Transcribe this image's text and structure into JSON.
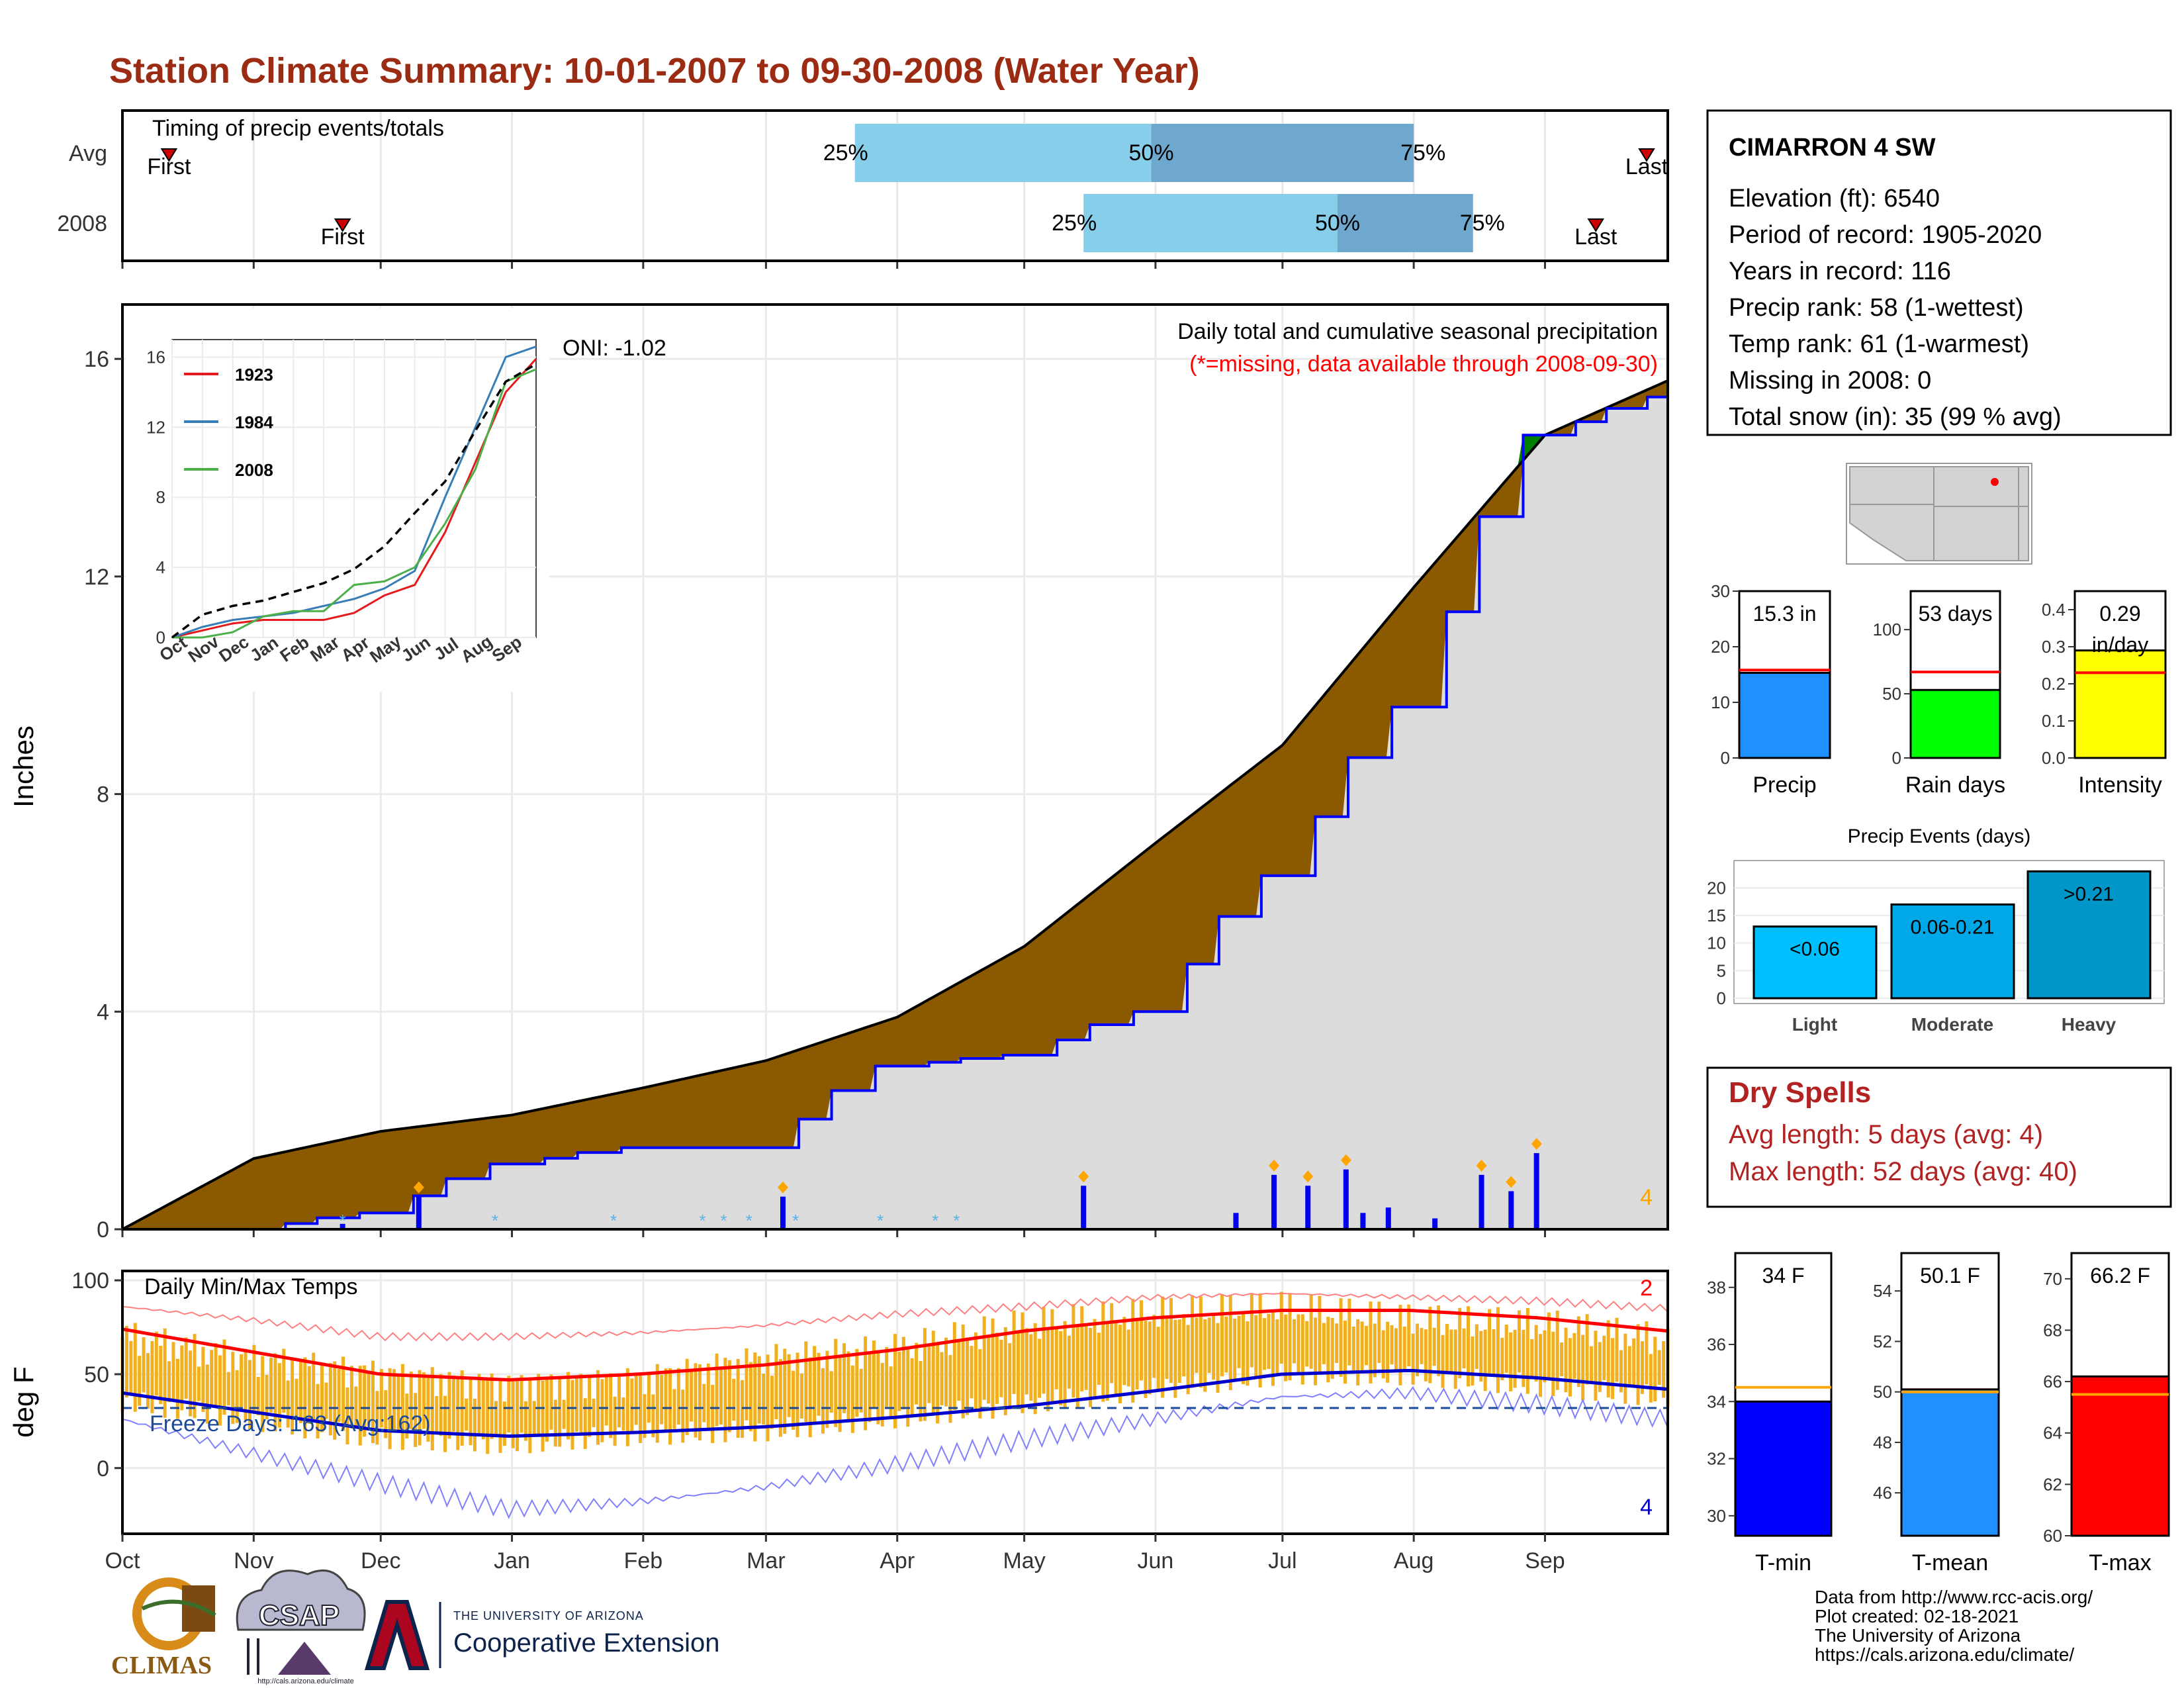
{
  "title": "Station Climate Summary: 10-01-2007 to 09-30-2008 (Water Year)",
  "timing": {
    "label": "Timing of precip events/totals",
    "rows": [
      {
        "name": "Avg",
        "first_label": "First",
        "last_label": "Last"
      },
      {
        "name": "2008",
        "first_label": "First",
        "last_label": "Last"
      }
    ],
    "pct_labels": [
      "25%",
      "50%",
      "75%"
    ]
  },
  "precip": {
    "ylabel": "Inches",
    "oni": "ONI: -1.02",
    "heading": "Daily total and cumulative seasonal precipitation",
    "note": "(*=missing, data available through 2008-09-30)",
    "extreme_count": "4",
    "y_ticks": [
      "0",
      "4",
      "8",
      "12",
      "16"
    ]
  },
  "inset": {
    "y_ticks": [
      "0",
      "4",
      "8",
      "12",
      "16"
    ],
    "x_ticks": [
      "Oct",
      "Nov",
      "Dec",
      "Jan",
      "Feb",
      "Mar",
      "Apr",
      "May",
      "Jun",
      "Jul",
      "Aug",
      "Sep"
    ],
    "legend": [
      "1923",
      "1984",
      "2008"
    ]
  },
  "temps": {
    "ylabel": "deg F",
    "heading": "Daily Min/Max Temps",
    "freeze": "Freeze Days: 163 (Avg:162)",
    "hot_count": "2",
    "cold_count": "4",
    "y_ticks": [
      "0",
      "50",
      "100"
    ]
  },
  "months": [
    "Oct",
    "Nov",
    "Dec",
    "Jan",
    "Feb",
    "Mar",
    "Apr",
    "May",
    "Jun",
    "Jul",
    "Aug",
    "Sep"
  ],
  "station": {
    "name": "CIMARRON 4 SW",
    "lines": [
      "Elevation (ft): 6540",
      "Period of record: 1905-2020",
      "Years in record: 116",
      "Precip rank: 58 (1-wettest)",
      "Temp rank: 61 (1-warmest)",
      "Missing in 2008: 0",
      "Total snow (in): 35 (99 % avg)"
    ]
  },
  "mini_bars": [
    {
      "label": "Precip",
      "value_text": "15.3 in",
      "ticks": [
        "0",
        "10",
        "20",
        "30"
      ]
    },
    {
      "label": "Rain days",
      "value_text": "53 days",
      "ticks": [
        "0",
        "50",
        "100"
      ]
    },
    {
      "label": "Intensity",
      "value_text": "0.29",
      "value_unit": "in/day",
      "ticks": [
        "0.0",
        "0.1",
        "0.2",
        "0.3",
        "0.4"
      ]
    }
  ],
  "events": {
    "title": "Precip Events (days)",
    "ticks": [
      "0",
      "5",
      "10",
      "15",
      "20"
    ],
    "categories": [
      "Light",
      "Moderate",
      "Heavy"
    ],
    "bar_labels": [
      "<0.06",
      "0.06-0.21",
      ">0.21"
    ]
  },
  "dry_spells": {
    "title": "Dry Spells",
    "avg": "Avg length: 5 days (avg: 4)",
    "max": "Max length: 52 days (avg: 40)"
  },
  "temp_bars": [
    {
      "label": "T-min",
      "value_text": "34 F",
      "ticks": [
        "30",
        "32",
        "34",
        "36",
        "38"
      ]
    },
    {
      "label": "T-mean",
      "value_text": "50.1 F",
      "ticks": [
        "46",
        "48",
        "50",
        "52",
        "54"
      ]
    },
    {
      "label": "T-max",
      "value_text": "66.2 F",
      "ticks": [
        "60",
        "62",
        "64",
        "66",
        "68",
        "70"
      ]
    }
  ],
  "footer": {
    "logo1": "CLIMAS",
    "logo2": "CSAP",
    "logo2_url": "http://cals.arizona.edu/climate",
    "ua_small": "THE UNIVERSITY OF ARIZONA",
    "ua_big": "Cooperative Extension",
    "credits": [
      "Data from http://www.rcc-acis.org/",
      "Plot created: 02-18-2021",
      "The University of Arizona",
      "https://cals.arizona.edu/climate/"
    ]
  },
  "colors": {
    "title": "#9b2b12",
    "normal_fill": "#8b5a00",
    "above_fill": "#008000",
    "year_line": "#0000ff",
    "temp_bar": "#f0b020",
    "tmax_line": "#ff0000",
    "tmin_line": "#0000cc",
    "timing_light": "#87ceeb",
    "timing_dark": "#6fa8cf"
  },
  "chart_data": [
    {
      "type": "bar",
      "name": "timing",
      "rows": [
        "Avg",
        "2008"
      ],
      "first": [
        "2007-10-12",
        "2007-11-22"
      ],
      "p25": [
        "2008-03-22",
        "2008-05-15"
      ],
      "p50": [
        "2008-05-31",
        "2008-07-14"
      ],
      "p75": [
        "2008-08-01",
        "2008-08-15"
      ],
      "last": [
        "2008-09-25",
        "2008-09-13"
      ]
    },
    {
      "type": "area",
      "name": "cumulative precipitation",
      "ylabel": "Inches",
      "ylim": [
        0,
        17
      ],
      "x": [
        "2007-10-01",
        "2007-11-01",
        "2007-12-01",
        "2008-01-01",
        "2008-02-01",
        "2008-03-01",
        "2008-04-01",
        "2008-05-01",
        "2008-06-01",
        "2008-07-01",
        "2008-08-01",
        "2008-09-01",
        "2008-09-30"
      ],
      "series": [
        {
          "name": "Normal cumulative",
          "values": [
            0,
            1.3,
            1.8,
            2.1,
            2.6,
            3.1,
            3.9,
            5.2,
            7.1,
            8.9,
            11.8,
            14.6,
            15.6
          ]
        },
        {
          "name": "2008 cumulative",
          "values": [
            0,
            0,
            0.3,
            1.2,
            1.5,
            1.5,
            3.0,
            3.2,
            4.0,
            6.5,
            9.6,
            14.6,
            15.3
          ]
        }
      ],
      "daily_bars": [
        {
          "date": "2007-11-22",
          "value": 0.1
        },
        {
          "date": "2007-12-10",
          "value": 0.6
        },
        {
          "date": "2008-03-05",
          "value": 0.6
        },
        {
          "date": "2008-05-15",
          "value": 0.8
        },
        {
          "date": "2008-06-20",
          "value": 0.3
        },
        {
          "date": "2008-06-29",
          "value": 1.0
        },
        {
          "date": "2008-07-07",
          "value": 0.8
        },
        {
          "date": "2008-07-16",
          "value": 1.1
        },
        {
          "date": "2008-07-20",
          "value": 0.3
        },
        {
          "date": "2008-07-26",
          "value": 0.4
        },
        {
          "date": "2008-08-06",
          "value": 0.2
        },
        {
          "date": "2008-08-17",
          "value": 1.0
        },
        {
          "date": "2008-08-24",
          "value": 0.7
        },
        {
          "date": "2008-08-30",
          "value": 1.4
        }
      ]
    },
    {
      "type": "line",
      "name": "inset cumulative years",
      "ylim": [
        0,
        17
      ],
      "x": [
        "Oct",
        "Nov",
        "Dec",
        "Jan",
        "Feb",
        "Mar",
        "Apr",
        "May",
        "Jun",
        "Jul",
        "Aug",
        "Sep",
        "end"
      ],
      "series": [
        {
          "name": "1923",
          "values": [
            0,
            0.4,
            0.8,
            1.0,
            1.0,
            1.0,
            1.4,
            2.4,
            3.0,
            6.0,
            10.0,
            14.0,
            15.9
          ]
        },
        {
          "name": "1984",
          "values": [
            0,
            0.6,
            1.0,
            1.2,
            1.4,
            1.8,
            2.2,
            2.8,
            3.8,
            8.0,
            12.0,
            16.0,
            16.6
          ]
        },
        {
          "name": "2008",
          "values": [
            0,
            0,
            0.3,
            1.2,
            1.5,
            1.5,
            3.0,
            3.2,
            4.0,
            6.5,
            9.6,
            14.6,
            15.3
          ]
        },
        {
          "name": "Average",
          "values": [
            0,
            1.3,
            1.8,
            2.1,
            2.6,
            3.1,
            3.9,
            5.2,
            7.1,
            8.9,
            11.8,
            14.6,
            15.6
          ]
        }
      ]
    },
    {
      "type": "line",
      "name": "daily temperatures",
      "ylabel": "deg F",
      "ylim": [
        -35,
        105
      ],
      "x": [
        "2007-10-01",
        "2007-11-01",
        "2007-12-01",
        "2008-01-01",
        "2008-02-01",
        "2008-03-01",
        "2008-04-01",
        "2008-05-01",
        "2008-06-01",
        "2008-07-01",
        "2008-08-01",
        "2008-09-01",
        "2008-09-30"
      ],
      "series": [
        {
          "name": "Avg max",
          "values": [
            74,
            62,
            50,
            47,
            50,
            55,
            63,
            73,
            80,
            84,
            84,
            80,
            73
          ]
        },
        {
          "name": "Avg min",
          "values": [
            40,
            30,
            20,
            17,
            19,
            22,
            27,
            33,
            41,
            50,
            52,
            48,
            42
          ]
        },
        {
          "name": "Record max",
          "values": [
            86,
            79,
            70,
            70,
            72,
            76,
            82,
            86,
            91,
            93,
            91,
            89,
            85
          ]
        },
        {
          "name": "Record min",
          "values": [
            26,
            8,
            -8,
            -22,
            -18,
            -10,
            2,
            15,
            26,
            38,
            40,
            34,
            26
          ]
        },
        {
          "name": "2008 max",
          "values": [
            70,
            58,
            50,
            44,
            47,
            58,
            63,
            76,
            82,
            85,
            78,
            76,
            68
          ]
        },
        {
          "name": "2008 min",
          "values": [
            36,
            26,
            16,
            13,
            18,
            20,
            27,
            34,
            42,
            50,
            50,
            44,
            38
          ]
        }
      ],
      "freeze_threshold": 32
    },
    {
      "type": "bar",
      "name": "season totals",
      "categories": [
        "Precip",
        "Rain days",
        "Intensity"
      ],
      "values": [
        15.3,
        53,
        0.29
      ],
      "averages": [
        15.8,
        67,
        0.23
      ],
      "ylims": [
        [
          0,
          30
        ],
        [
          0,
          130
        ],
        [
          0,
          0.45
        ]
      ]
    },
    {
      "type": "bar",
      "name": "Precip Events (days)",
      "categories": [
        "Light",
        "Moderate",
        "Heavy"
      ],
      "values": [
        13,
        17,
        23
      ],
      "ylim": [
        0,
        24
      ]
    },
    {
      "type": "bar",
      "name": "temperature means",
      "categories": [
        "T-min",
        "T-mean",
        "T-max"
      ],
      "values": [
        34,
        50.1,
        66.2
      ],
      "averages": [
        34.5,
        50.0,
        65.5
      ],
      "ylims": [
        [
          29.3,
          39.2
        ],
        [
          44.3,
          55.5
        ],
        [
          60,
          71
        ]
      ]
    }
  ]
}
